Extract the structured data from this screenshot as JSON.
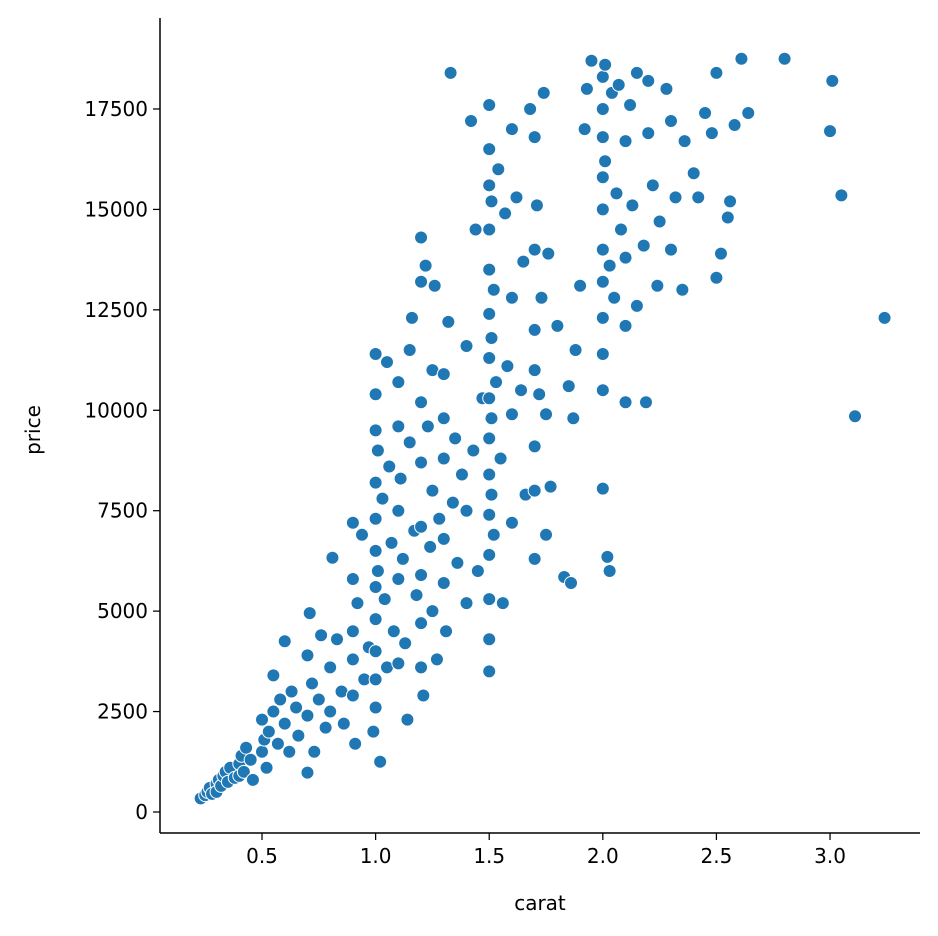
{
  "chart_data": {
    "type": "scatter",
    "x_label": "carat",
    "y_label": "price",
    "color": "#1f77b4",
    "xlim": [
      0.051,
      3.396
    ],
    "ylim": [
      -523,
      19765
    ],
    "xticks": [
      0.5,
      {
        "value": 1.0,
        "label": "1.0"
      },
      1.5,
      {
        "value": 2.0,
        "label": "2.0"
      },
      2.5,
      {
        "value": 3.0,
        "label": "3.0"
      }
    ],
    "yticks": [
      0,
      2500,
      5000,
      7500,
      10000,
      12500,
      15000,
      17500
    ],
    "x": [
      0.23,
      0.25,
      0.26,
      0.27,
      0.28,
      0.3,
      0.3,
      0.31,
      0.32,
      0.33,
      0.34,
      0.35,
      0.36,
      0.38,
      0.4,
      0.4,
      0.41,
      0.42,
      0.43,
      0.45,
      0.46,
      0.5,
      0.5,
      0.51,
      0.52,
      0.53,
      0.55,
      0.55,
      0.57,
      0.58,
      0.6,
      0.6,
      0.62,
      0.63,
      0.65,
      0.66,
      0.7,
      0.7,
      0.7,
      0.71,
      0.72,
      0.73,
      0.75,
      0.76,
      0.78,
      0.8,
      0.8,
      0.81,
      0.83,
      0.85,
      0.86,
      0.9,
      0.9,
      0.9,
      0.9,
      0.9,
      0.91,
      0.92,
      0.94,
      0.95,
      0.97,
      0.99,
      1.0,
      1.0,
      1.0,
      1.0,
      1.0,
      1.0,
      1.0,
      1.0,
      1.0,
      1.0,
      1.0,
      1.01,
      1.01,
      1.02,
      1.03,
      1.04,
      1.05,
      1.05,
      1.06,
      1.07,
      1.08,
      1.1,
      1.1,
      1.1,
      1.1,
      1.1,
      1.11,
      1.12,
      1.13,
      1.14,
      1.15,
      1.15,
      1.16,
      1.17,
      1.18,
      1.2,
      1.2,
      1.2,
      1.2,
      1.2,
      1.2,
      1.2,
      1.2,
      1.21,
      1.22,
      1.23,
      1.24,
      1.25,
      1.25,
      1.25,
      1.26,
      1.27,
      1.28,
      1.3,
      1.3,
      1.3,
      1.3,
      1.3,
      1.31,
      1.32,
      1.33,
      1.34,
      1.35,
      1.36,
      1.38,
      1.4,
      1.4,
      1.4,
      1.42,
      1.43,
      1.44,
      1.45,
      1.47,
      1.5,
      1.5,
      1.5,
      1.5,
      1.5,
      1.5,
      1.5,
      1.5,
      1.5,
      1.5,
      1.5,
      1.5,
      1.5,
      1.5,
      1.5,
      1.51,
      1.51,
      1.51,
      1.51,
      1.52,
      1.52,
      1.53,
      1.54,
      1.55,
      1.56,
      1.57,
      1.58,
      1.6,
      1.6,
      1.6,
      1.6,
      1.62,
      1.64,
      1.65,
      1.66,
      1.68,
      1.7,
      1.7,
      1.7,
      1.7,
      1.7,
      1.7,
      1.7,
      1.71,
      1.72,
      1.73,
      1.74,
      1.75,
      1.75,
      1.76,
      1.77,
      1.8,
      1.83,
      1.85,
      1.86,
      1.87,
      1.88,
      1.9,
      1.92,
      1.93,
      1.95,
      2.0,
      2.0,
      2.0,
      2.0,
      2.0,
      2.0,
      2.0,
      2.0,
      2.0,
      2.0,
      2.0,
      2.01,
      2.01,
      2.02,
      2.03,
      2.03,
      2.04,
      2.05,
      2.06,
      2.07,
      2.08,
      2.1,
      2.1,
      2.1,
      2.1,
      2.12,
      2.13,
      2.15,
      2.15,
      2.18,
      2.19,
      2.2,
      2.2,
      2.22,
      2.24,
      2.25,
      2.28,
      2.3,
      2.3,
      2.32,
      2.35,
      2.36,
      2.4,
      2.42,
      2.45,
      2.48,
      2.5,
      2.5,
      2.52,
      2.55,
      2.56,
      2.58,
      2.61,
      2.64,
      2.8,
      3.0,
      3.01,
      3.05,
      3.11,
      3.24
    ],
    "values": [
      340,
      420,
      500,
      600,
      450,
      700,
      500,
      800,
      650,
      900,
      1000,
      750,
      1100,
      850,
      1200,
      900,
      1400,
      1000,
      1600,
      1300,
      800,
      1500,
      2300,
      1800,
      1100,
      2000,
      2500,
      3400,
      1700,
      2800,
      4250,
      2200,
      1500,
      3000,
      2600,
      1900,
      3900,
      980,
      2400,
      4950,
      3200,
      1500,
      2800,
      4400,
      2100,
      3600,
      2500,
      6330,
      4300,
      3000,
      2200,
      7200,
      5800,
      4500,
      3800,
      2900,
      1700,
      5200,
      6900,
      3300,
      4100,
      2000,
      11400,
      10400,
      9500,
      8200,
      7300,
      6500,
      5600,
      4800,
      4000,
      3300,
      2600,
      9000,
      6000,
      1250,
      7800,
      5300,
      11200,
      3600,
      8600,
      6700,
      4500,
      10700,
      9600,
      7500,
      5800,
      3700,
      8300,
      6300,
      4200,
      2300,
      11500,
      9200,
      12300,
      7000,
      5400,
      14300,
      13200,
      10200,
      8700,
      7100,
      5900,
      4700,
      3600,
      2900,
      13600,
      9600,
      6600,
      11000,
      8000,
      5000,
      13100,
      3800,
      7300,
      10900,
      9800,
      8800,
      6800,
      5700,
      4500,
      12200,
      18400,
      7700,
      9300,
      6200,
      8400,
      11600,
      7500,
      5200,
      17200,
      9000,
      14500,
      6000,
      10300,
      17600,
      16500,
      15600,
      14500,
      13500,
      12400,
      11300,
      10300,
      9300,
      8400,
      7400,
      6400,
      5300,
      4300,
      3500,
      15200,
      11800,
      9800,
      7900,
      13000,
      6900,
      10700,
      16000,
      8800,
      5200,
      14900,
      11100,
      17000,
      12800,
      9900,
      7200,
      15300,
      10500,
      13700,
      7900,
      17500,
      16800,
      14000,
      12000,
      11000,
      9100,
      8000,
      6300,
      15100,
      10400,
      12800,
      17900,
      9900,
      6900,
      13900,
      8100,
      12100,
      5850,
      10600,
      5700,
      9800,
      11500,
      13100,
      17000,
      18000,
      18700,
      18300,
      17500,
      16800,
      15800,
      15000,
      14000,
      13200,
      12300,
      11400,
      10500,
      8050,
      18600,
      16200,
      6350,
      6000,
      13600,
      17900,
      12800,
      15400,
      18100,
      14500,
      16700,
      13800,
      12100,
      10200,
      17600,
      15100,
      18400,
      12600,
      14100,
      10200,
      16900,
      18200,
      15600,
      13100,
      14700,
      18000,
      17200,
      14000,
      15300,
      13000,
      16700,
      15900,
      15300,
      17400,
      16900,
      18400,
      13300,
      13900,
      14800,
      15200,
      17100,
      18750,
      17400,
      18750,
      16950,
      18200,
      15350,
      9850,
      12300
    ]
  }
}
